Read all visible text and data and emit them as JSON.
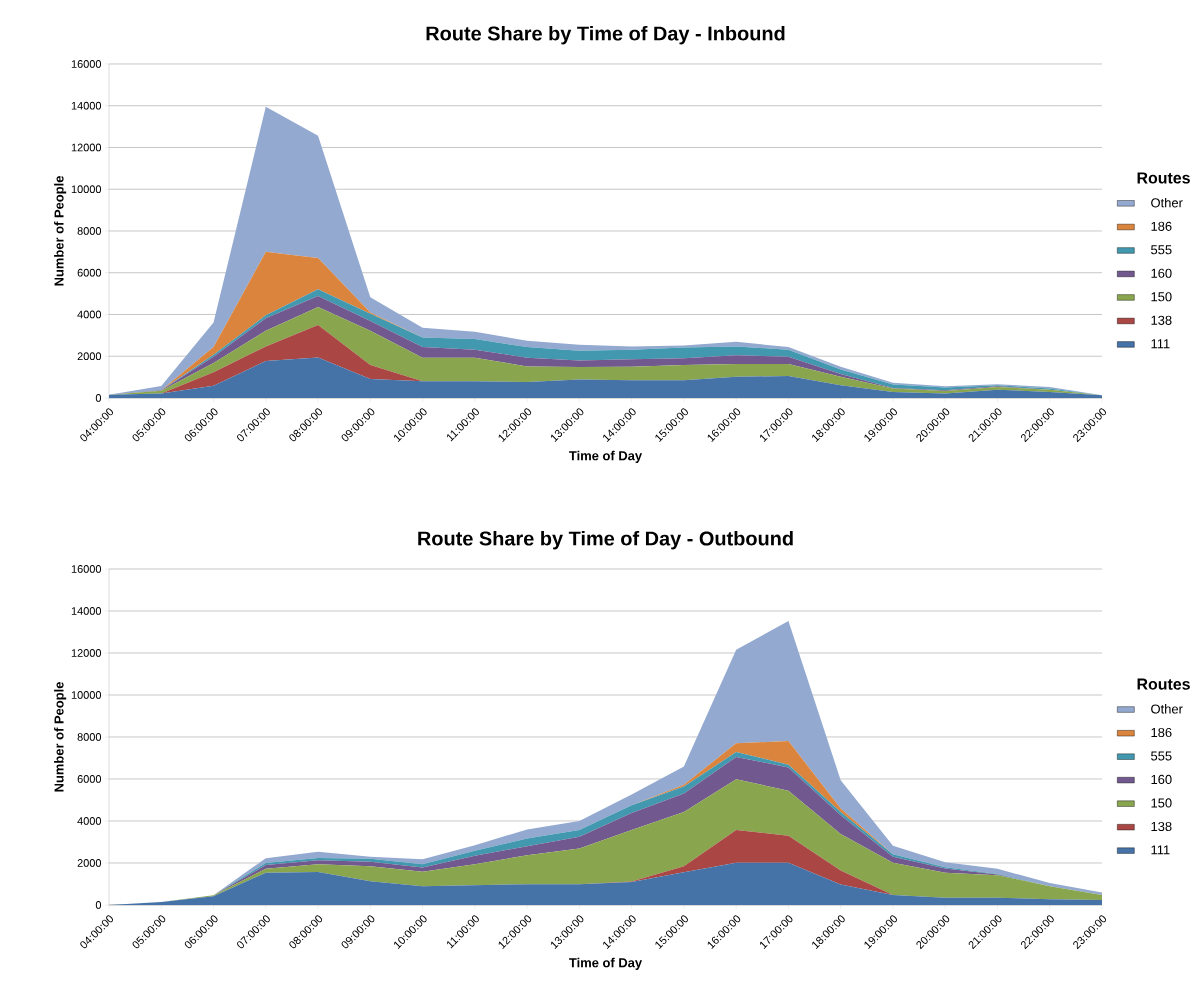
{
  "chart_data": [
    {
      "type": "area",
      "title": "Route Share by Time of Day - Inbound",
      "xlabel": "Time of Day",
      "ylabel": "Number of People",
      "legend_title": "Routes",
      "stacked": true,
      "grid": "y",
      "legend": "right",
      "ylim": [
        0,
        16000
      ],
      "yticks": [
        0,
        2000,
        4000,
        6000,
        8000,
        10000,
        12000,
        14000,
        16000
      ],
      "categories": [
        "04:00:00",
        "05:00:00",
        "06:00:00",
        "07:00:00",
        "08:00:00",
        "09:00:00",
        "10:00:00",
        "11:00:00",
        "12:00:00",
        "13:00:00",
        "14:00:00",
        "15:00:00",
        "16:00:00",
        "17:00:00",
        "18:00:00",
        "19:00:00",
        "20:00:00",
        "21:00:00",
        "22:00:00",
        "23:00:00"
      ],
      "series": [
        {
          "name": "111",
          "color": "#4572a7",
          "values": [
            150,
            220,
            590,
            1770,
            1940,
            910,
            800,
            800,
            760,
            880,
            850,
            850,
            1020,
            1050,
            610,
            290,
            210,
            400,
            290,
            130
          ]
        },
        {
          "name": "138",
          "color": "#aa4643",
          "values": [
            0,
            0,
            640,
            700,
            1560,
            670,
            0,
            0,
            0,
            0,
            0,
            0,
            0,
            0,
            0,
            0,
            0,
            0,
            0,
            0
          ]
        },
        {
          "name": "150",
          "color": "#89a54e",
          "values": [
            0,
            130,
            440,
            750,
            860,
            1640,
            1130,
            1130,
            750,
            600,
            650,
            730,
            610,
            580,
            410,
            160,
            130,
            130,
            110,
            0
          ]
        },
        {
          "name": "160",
          "color": "#71588f",
          "values": [
            0,
            20,
            300,
            600,
            530,
            470,
            510,
            380,
            420,
            320,
            360,
            320,
            420,
            350,
            130,
            30,
            30,
            30,
            0,
            0
          ]
        },
        {
          "name": "555",
          "color": "#4198af",
          "values": [
            0,
            0,
            100,
            140,
            320,
            350,
            460,
            510,
            510,
            460,
            450,
            520,
            420,
            330,
            220,
            170,
            130,
            50,
            50,
            0
          ]
        },
        {
          "name": "186",
          "color": "#db843d",
          "values": [
            0,
            0,
            370,
            3040,
            1490,
            50,
            0,
            0,
            0,
            0,
            0,
            0,
            0,
            0,
            0,
            0,
            0,
            0,
            0,
            0
          ]
        },
        {
          "name": "Other",
          "color": "#93a9cf",
          "values": [
            0,
            200,
            1170,
            6950,
            5860,
            730,
            460,
            350,
            300,
            290,
            160,
            100,
            220,
            130,
            130,
            80,
            60,
            50,
            80,
            0
          ]
        }
      ]
    },
    {
      "type": "area",
      "title": "Route Share by Time of Day - Outbound",
      "xlabel": "Time of Day",
      "ylabel": "Number of People",
      "legend_title": "Routes",
      "stacked": true,
      "grid": "y",
      "legend": "right",
      "ylim": [
        0,
        16000
      ],
      "yticks": [
        0,
        2000,
        4000,
        6000,
        8000,
        10000,
        12000,
        14000,
        16000
      ],
      "categories": [
        "04:00:00",
        "05:00:00",
        "06:00:00",
        "07:00:00",
        "08:00:00",
        "09:00:00",
        "10:00:00",
        "11:00:00",
        "12:00:00",
        "13:00:00",
        "14:00:00",
        "15:00:00",
        "16:00:00",
        "17:00:00",
        "18:00:00",
        "19:00:00",
        "20:00:00",
        "21:00:00",
        "22:00:00",
        "23:00:00"
      ],
      "series": [
        {
          "name": "111",
          "color": "#4572a7",
          "values": [
            0,
            140,
            410,
            1540,
            1570,
            1130,
            890,
            940,
            990,
            990,
            1090,
            1560,
            2010,
            2010,
            970,
            480,
            350,
            350,
            270,
            240
          ]
        },
        {
          "name": "138",
          "color": "#aa4643",
          "values": [
            0,
            0,
            0,
            0,
            0,
            0,
            0,
            0,
            0,
            0,
            30,
            290,
            1560,
            1290,
            670,
            0,
            0,
            0,
            0,
            0
          ]
        },
        {
          "name": "150",
          "color": "#89a54e",
          "values": [
            0,
            0,
            50,
            190,
            370,
            720,
            690,
            1000,
            1380,
            1700,
            2450,
            2580,
            2420,
            2140,
            1740,
            1530,
            1180,
            1070,
            620,
            240
          ]
        },
        {
          "name": "160",
          "color": "#71588f",
          "values": [
            0,
            0,
            0,
            170,
            190,
            210,
            200,
            400,
            430,
            560,
            810,
            880,
            1060,
            1110,
            890,
            290,
            210,
            30,
            0,
            0
          ]
        },
        {
          "name": "555",
          "color": "#4198af",
          "values": [
            0,
            0,
            0,
            100,
            110,
            140,
            160,
            240,
            370,
            320,
            370,
            330,
            230,
            130,
            160,
            120,
            60,
            30,
            0,
            0
          ]
        },
        {
          "name": "186",
          "color": "#db843d",
          "values": [
            0,
            0,
            0,
            0,
            0,
            0,
            0,
            0,
            0,
            0,
            0,
            80,
            420,
            1130,
            160,
            0,
            0,
            0,
            0,
            0
          ]
        },
        {
          "name": "Other",
          "color": "#93a9cf",
          "values": [
            0,
            0,
            0,
            230,
            290,
            100,
            240,
            270,
            430,
            430,
            510,
            880,
            4460,
            5710,
            1350,
            400,
            240,
            240,
            160,
            120
          ]
        }
      ]
    }
  ]
}
